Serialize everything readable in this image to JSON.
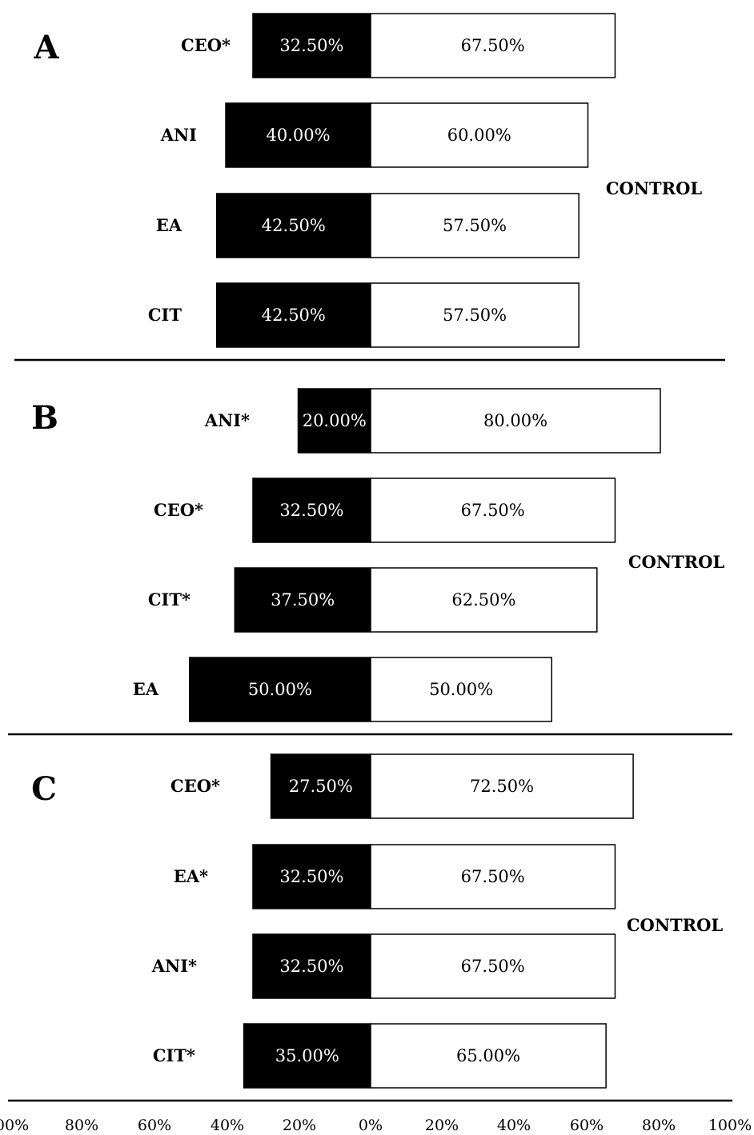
{
  "chart_data": {
    "type": "bar",
    "orientation": "horizontal-diverging",
    "x_ticks": [
      "00%",
      "80%",
      "60%",
      "40%",
      "20%",
      "0%",
      "20%",
      "40%",
      "60%",
      "80%",
      "100%"
    ],
    "xlim": [
      -100,
      100
    ],
    "colors": {
      "left": "#000000",
      "right": "#ffffff",
      "border": "#000000"
    },
    "panels": [
      {
        "label": "A",
        "group_label": "CONTROL",
        "categories": [
          "CEO*",
          "ANI",
          "EA",
          "CIT"
        ],
        "left_values": [
          32.5,
          40.0,
          42.5,
          42.5
        ],
        "right_values": [
          67.5,
          60.0,
          57.5,
          57.5
        ],
        "left_labels": [
          "32.50%",
          "40.00%",
          "42.50%",
          "42.50%"
        ],
        "right_labels": [
          "67.50%",
          "60.00%",
          "57.50%",
          "57.50%"
        ]
      },
      {
        "label": "B",
        "group_label": "CONTROL",
        "categories": [
          "ANI*",
          "CEO*",
          "CIT*",
          "EA"
        ],
        "left_values": [
          20.0,
          32.5,
          37.5,
          50.0
        ],
        "right_values": [
          80.0,
          67.5,
          62.5,
          50.0
        ],
        "left_labels": [
          "20.00%",
          "32.50%",
          "37.50%",
          "50.00%"
        ],
        "right_labels": [
          "80.00%",
          "67.50%",
          "62.50%",
          "50.00%"
        ]
      },
      {
        "label": "C",
        "group_label": "CONTROL",
        "categories": [
          "CEO*",
          "EA*",
          "ANI*",
          "CIT*"
        ],
        "left_values": [
          27.5,
          32.5,
          32.5,
          35.0
        ],
        "right_values": [
          72.5,
          67.5,
          67.5,
          65.0
        ],
        "left_labels": [
          "27.50%",
          "32.50%",
          "32.50%",
          "35.00%"
        ],
        "right_labels": [
          "72.50%",
          "67.50%",
          "67.50%",
          "65.00%"
        ]
      }
    ]
  }
}
